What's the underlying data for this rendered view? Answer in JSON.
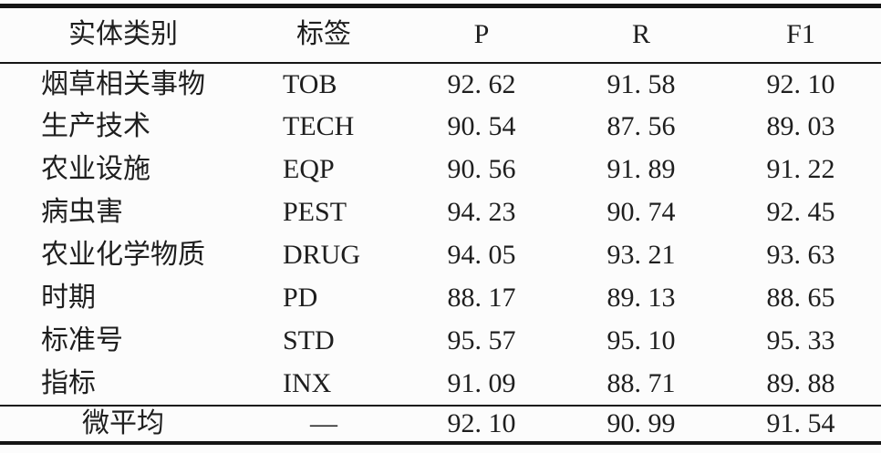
{
  "table": {
    "columns": [
      {
        "key": "category",
        "label": "实体类别"
      },
      {
        "key": "tag",
        "label": "标签"
      },
      {
        "key": "p",
        "label": "P"
      },
      {
        "key": "r",
        "label": "R"
      },
      {
        "key": "f1",
        "label": "F1"
      }
    ],
    "rows": [
      {
        "category": "烟草相关事物",
        "tag": "TOB",
        "p": "92. 62",
        "r": "91. 58",
        "f1": "92. 10"
      },
      {
        "category": "生产技术",
        "tag": "TECH",
        "p": "90. 54",
        "r": "87. 56",
        "f1": "89. 03"
      },
      {
        "category": "农业设施",
        "tag": "EQP",
        "p": "90. 56",
        "r": "91. 89",
        "f1": "91. 22"
      },
      {
        "category": "病虫害",
        "tag": "PEST",
        "p": "94. 23",
        "r": "90. 74",
        "f1": "92. 45"
      },
      {
        "category": "农业化学物质",
        "tag": "DRUG",
        "p": "94. 05",
        "r": "93. 21",
        "f1": "93. 63"
      },
      {
        "category": "时期",
        "tag": "PD",
        "p": "88. 17",
        "r": "89. 13",
        "f1": "88. 65"
      },
      {
        "category": "标准号",
        "tag": "STD",
        "p": "95. 57",
        "r": "95. 10",
        "f1": "95. 33"
      },
      {
        "category": "指标",
        "tag": "INX",
        "p": "91. 09",
        "r": "88. 71",
        "f1": "89. 88"
      }
    ],
    "footer": {
      "category": "微平均",
      "tag": "—",
      "p": "92. 10",
      "r": "90. 99",
      "f1": "91. 54"
    }
  },
  "colors": {
    "rule": "#151515",
    "text": "#1e1e1e",
    "background": "#fcfcfc"
  }
}
